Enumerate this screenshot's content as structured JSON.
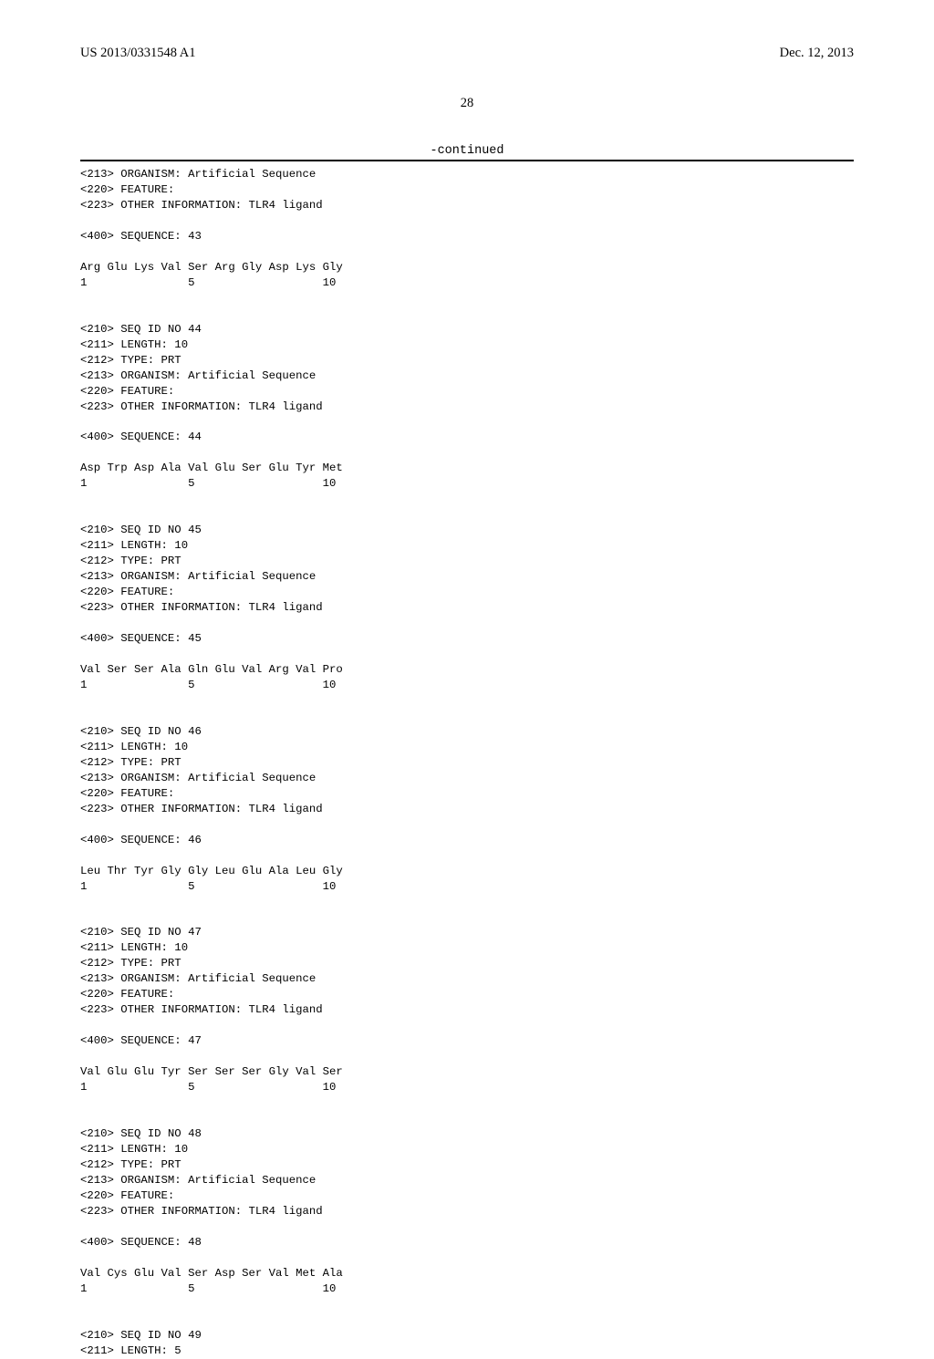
{
  "header": {
    "pub_number": "US 2013/0331548 A1",
    "pub_date": "Dec. 12, 2013"
  },
  "page_number": "28",
  "continued_label": "-continued",
  "seq_listing_text": "<213> ORGANISM: Artificial Sequence\n<220> FEATURE:\n<223> OTHER INFORMATION: TLR4 ligand\n\n<400> SEQUENCE: 43\n\nArg Glu Lys Val Ser Arg Gly Asp Lys Gly\n1               5                   10\n\n\n<210> SEQ ID NO 44\n<211> LENGTH: 10\n<212> TYPE: PRT\n<213> ORGANISM: Artificial Sequence\n<220> FEATURE:\n<223> OTHER INFORMATION: TLR4 ligand\n\n<400> SEQUENCE: 44\n\nAsp Trp Asp Ala Val Glu Ser Glu Tyr Met\n1               5                   10\n\n\n<210> SEQ ID NO 45\n<211> LENGTH: 10\n<212> TYPE: PRT\n<213> ORGANISM: Artificial Sequence\n<220> FEATURE:\n<223> OTHER INFORMATION: TLR4 ligand\n\n<400> SEQUENCE: 45\n\nVal Ser Ser Ala Gln Glu Val Arg Val Pro\n1               5                   10\n\n\n<210> SEQ ID NO 46\n<211> LENGTH: 10\n<212> TYPE: PRT\n<213> ORGANISM: Artificial Sequence\n<220> FEATURE:\n<223> OTHER INFORMATION: TLR4 ligand\n\n<400> SEQUENCE: 46\n\nLeu Thr Tyr Gly Gly Leu Glu Ala Leu Gly\n1               5                   10\n\n\n<210> SEQ ID NO 47\n<211> LENGTH: 10\n<212> TYPE: PRT\n<213> ORGANISM: Artificial Sequence\n<220> FEATURE:\n<223> OTHER INFORMATION: TLR4 ligand\n\n<400> SEQUENCE: 47\n\nVal Glu Glu Tyr Ser Ser Ser Gly Val Ser\n1               5                   10\n\n\n<210> SEQ ID NO 48\n<211> LENGTH: 10\n<212> TYPE: PRT\n<213> ORGANISM: Artificial Sequence\n<220> FEATURE:\n<223> OTHER INFORMATION: TLR4 ligand\n\n<400> SEQUENCE: 48\n\nVal Cys Glu Val Ser Asp Ser Val Met Ala\n1               5                   10\n\n\n<210> SEQ ID NO 49\n<211> LENGTH: 5"
}
